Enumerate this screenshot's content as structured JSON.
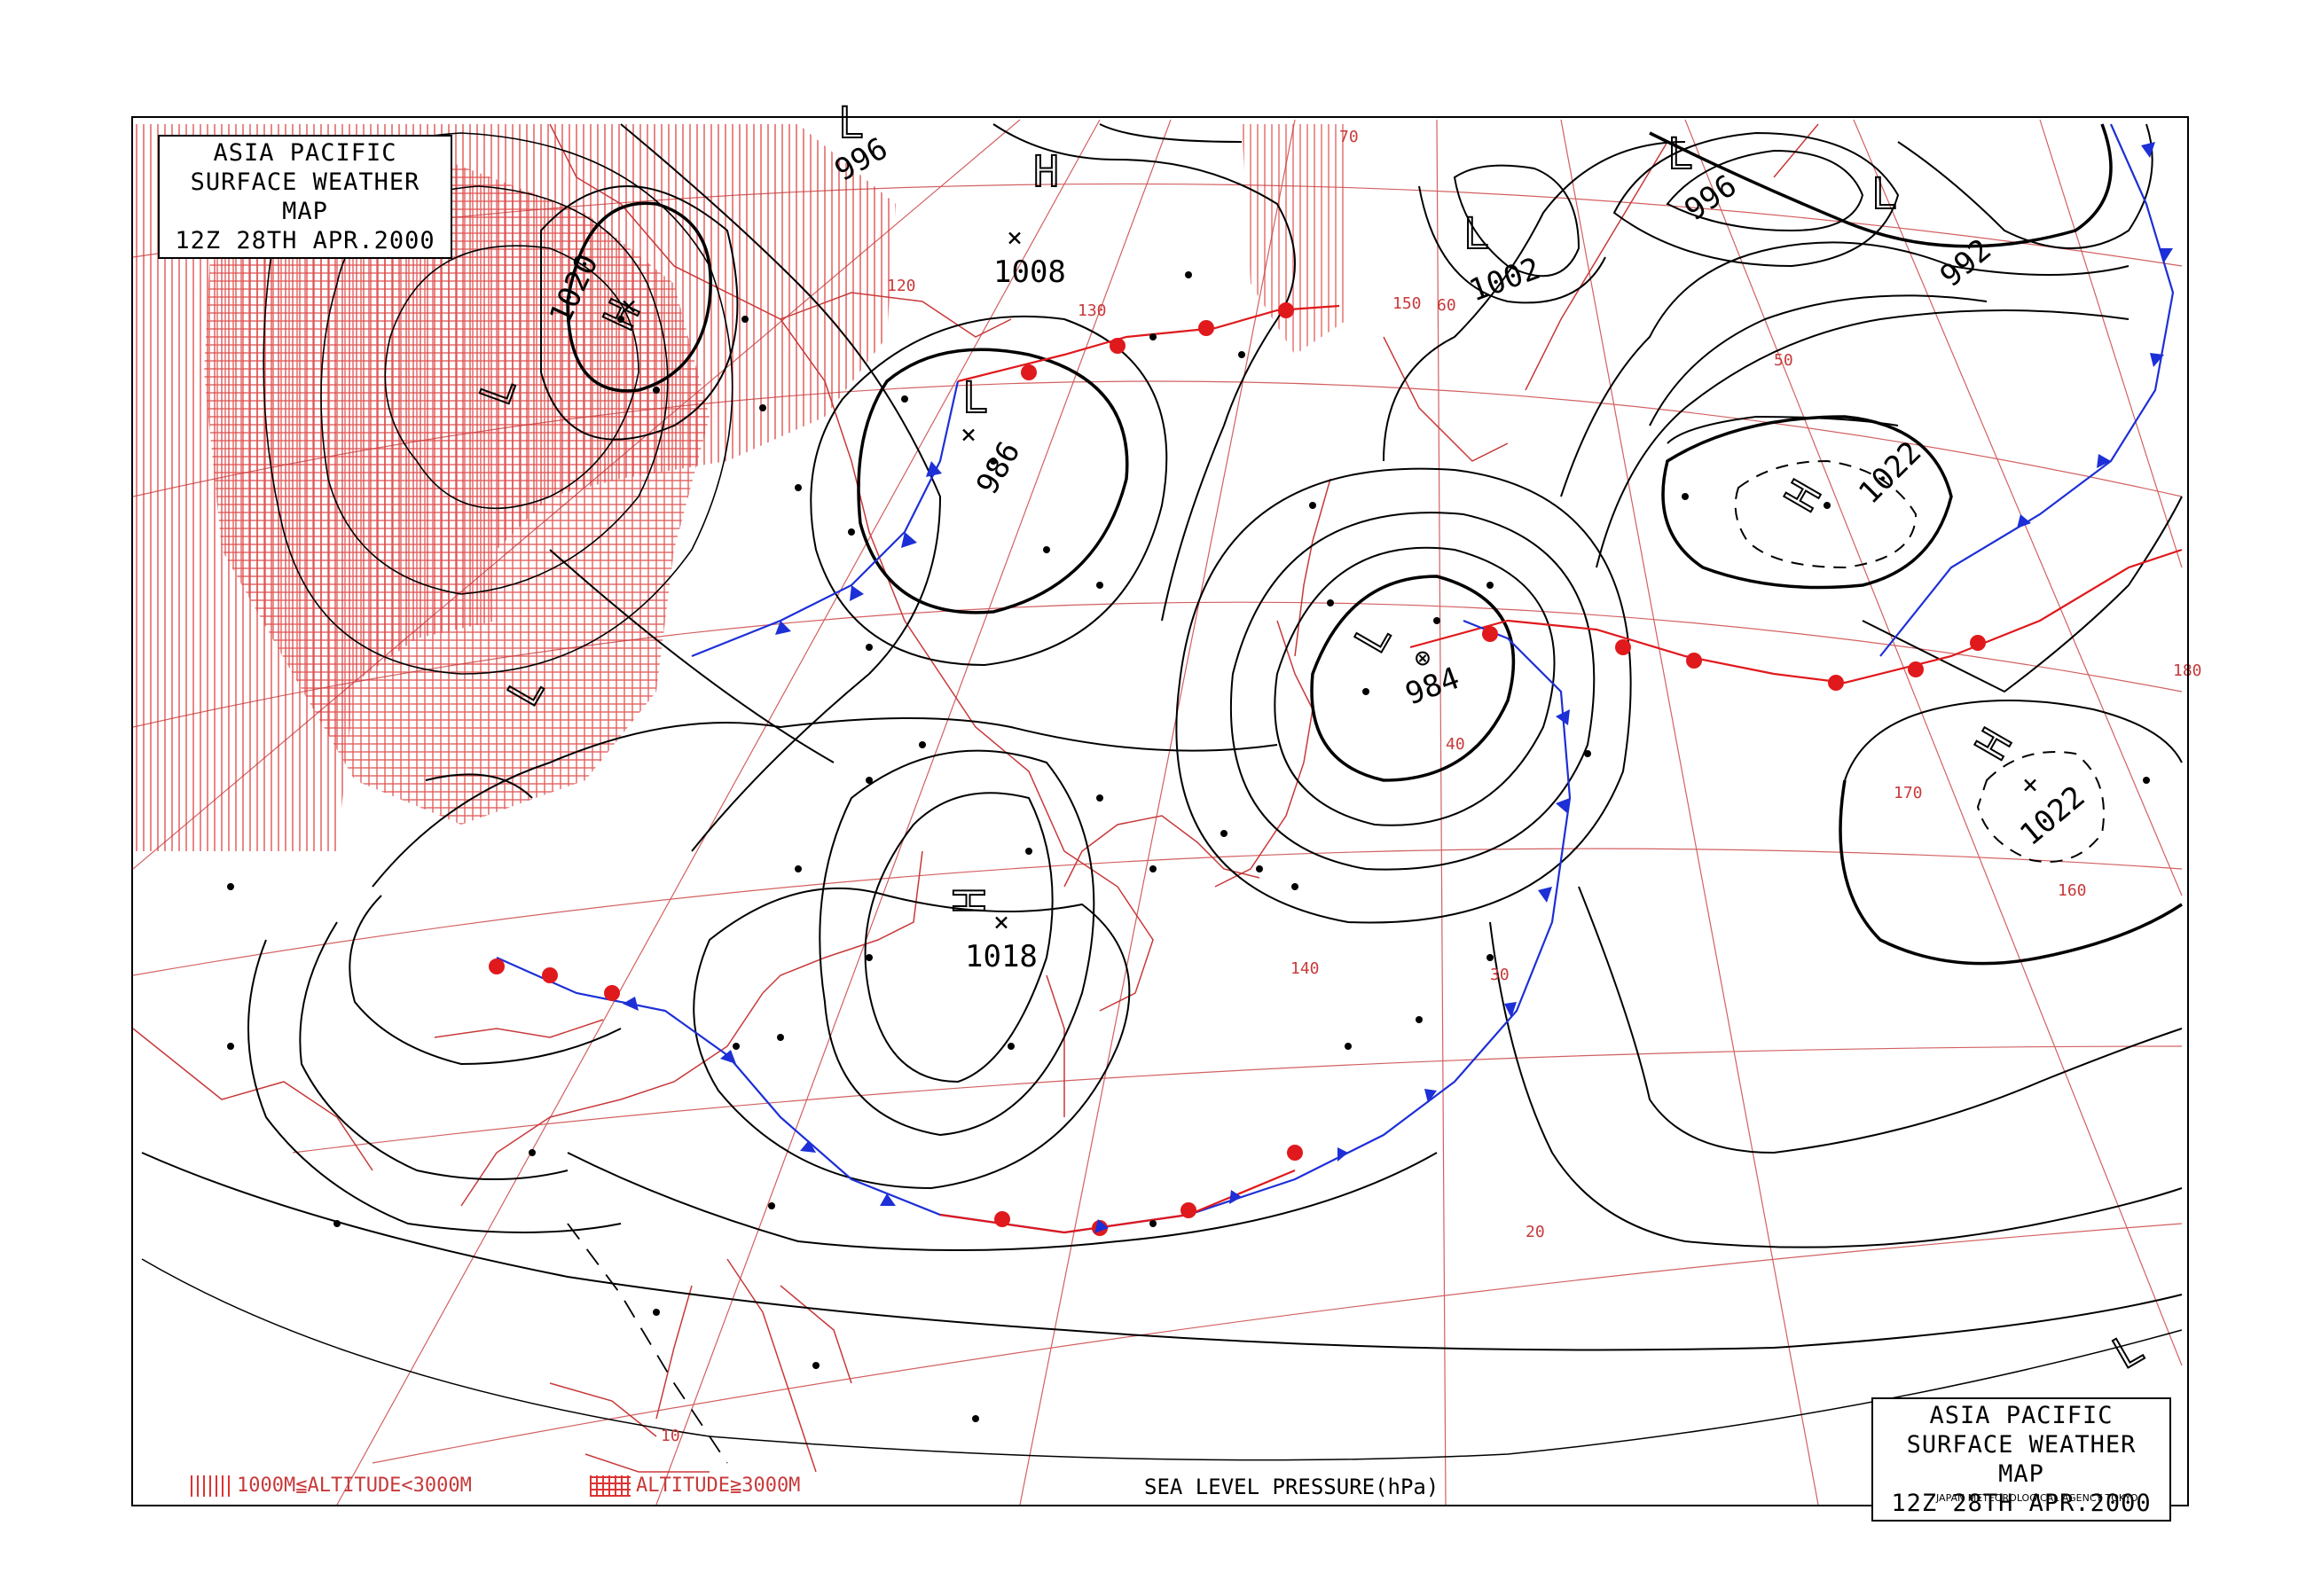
{
  "title": {
    "line1": "ASIA PACIFIC",
    "line2": "SURFACE WEATHER MAP",
    "line3": "12Z 28TH APR.2000"
  },
  "legend": {
    "highland": "1000M≦ALTITUDE<3000M",
    "mountain": "ALTITUDE≧3000M"
  },
  "axis_title": "SEA LEVEL PRESSURE(hPa)",
  "agency": "JAPAN METEOROLOGICAL AGENCY TOKYO",
  "colors": {
    "grid": "#c8393a",
    "coast": "#c8393a",
    "isobar": "#000000",
    "warm_front": "#e0191c",
    "cold_front": "#1d2fd6"
  },
  "grid_labels": {
    "latitudes": [
      "70",
      "60",
      "50",
      "40",
      "30",
      "20",
      "10"
    ],
    "longitudes": [
      "120",
      "130",
      "140",
      "150",
      "160",
      "170",
      "180"
    ]
  },
  "pressure_systems": [
    {
      "type": "H",
      "pressure": "1020"
    },
    {
      "type": "L",
      "pressure": "996"
    },
    {
      "type": "H",
      "pressure": "1008"
    },
    {
      "type": "L",
      "pressure": "986"
    },
    {
      "type": "L",
      "pressure": "1002"
    },
    {
      "type": "L",
      "pressure": "996"
    },
    {
      "type": "L",
      "pressure": "992"
    },
    {
      "type": "H",
      "pressure": "1022"
    },
    {
      "type": "L",
      "pressure": "984"
    },
    {
      "type": "H",
      "pressure": "1018"
    },
    {
      "type": "H",
      "pressure": "1022"
    },
    {
      "type": "L",
      "pressure": ""
    }
  ]
}
